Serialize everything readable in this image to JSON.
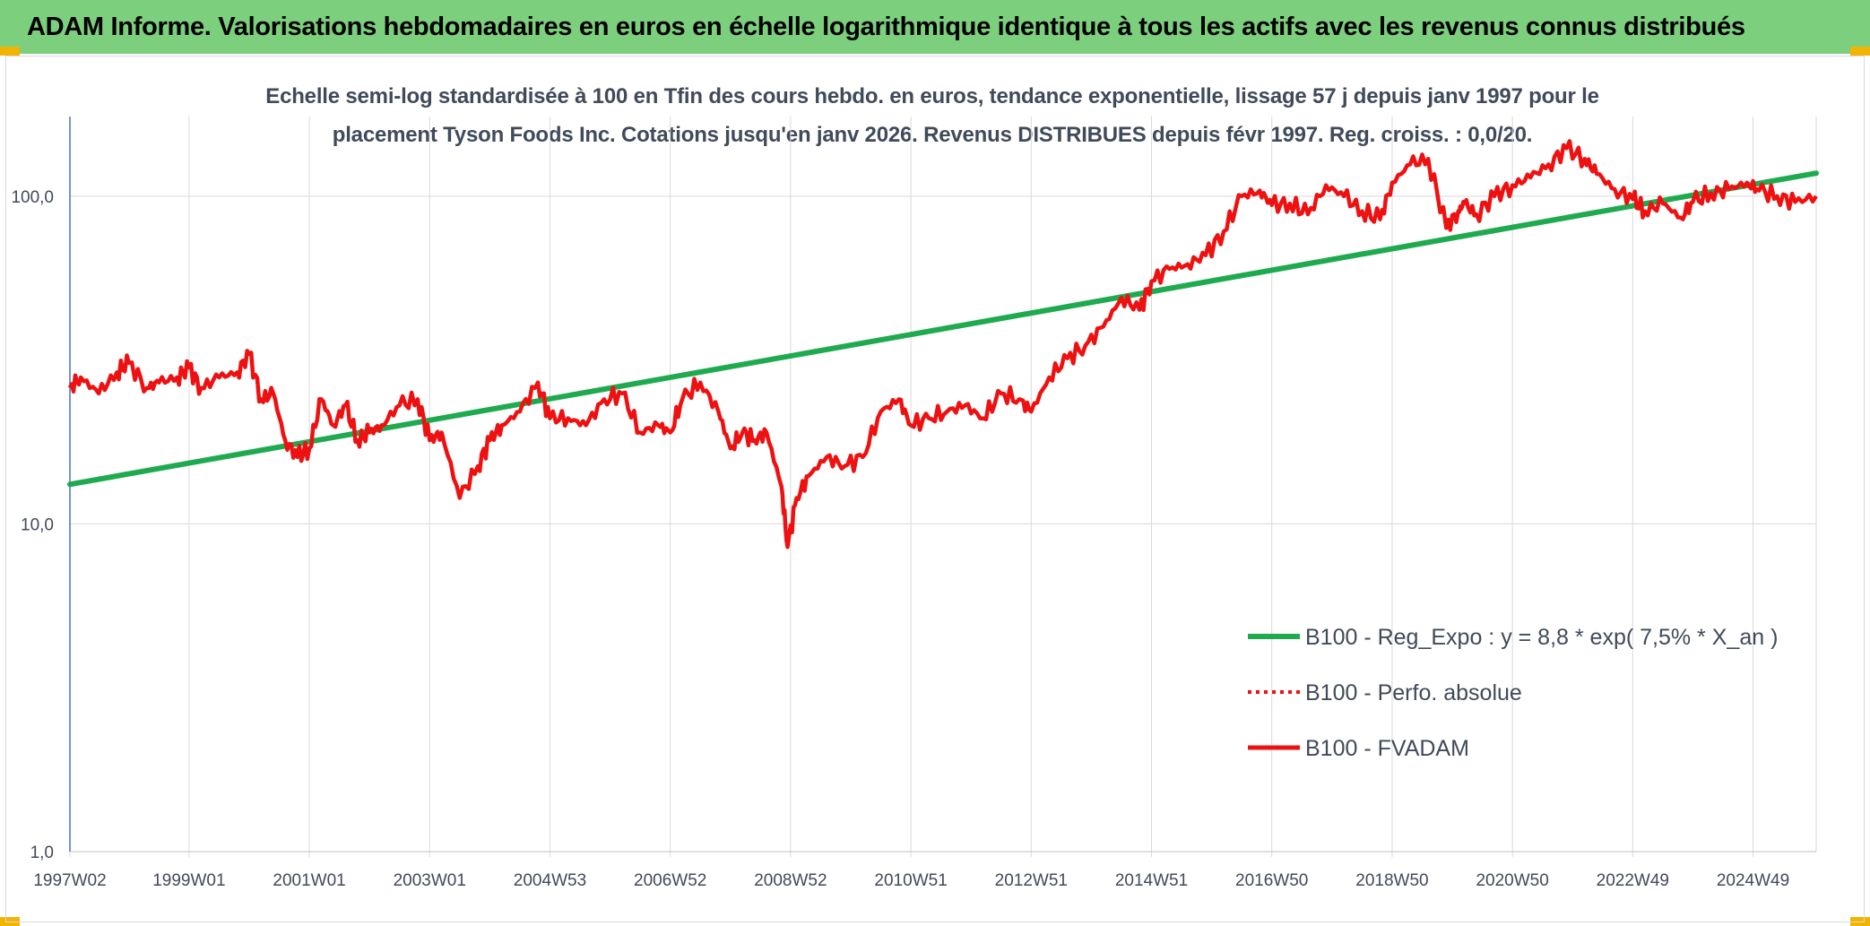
{
  "header": {
    "title": "ADAM Informe. Valorisations hebdomadaires en euros en échelle logarithmique identique à tous les actifs avec les revenus connus distribués"
  },
  "colors": {
    "header_bg": "#7ccf7c",
    "trend": "#1faa50",
    "series": "#ee1111",
    "text": "#404a5a",
    "grid": "#d9d9d9"
  },
  "chart_data": {
    "type": "line",
    "subtitle_line1": "Echelle semi-log standardisée à 100 en Tfin des cours hebdo. en euros, tendance exponentielle, lissage 57 j depuis janv 1997 pour le",
    "subtitle_line2": "placement Tyson Foods Inc. Cotations jusqu'en janv 2026. Revenus DISTRIBUES depuis févr 1997. Reg. croiss. : 0,0/20.",
    "y_scale": "log",
    "ylim": [
      1,
      175
    ],
    "y_ticks": [
      {
        "value": 1,
        "label": "1,0"
      },
      {
        "value": 10,
        "label": "10,0"
      },
      {
        "value": 100,
        "label": "100,0"
      }
    ],
    "x_range": [
      1997.02,
      2026.05
    ],
    "x_ticks": [
      {
        "t": 1997.02,
        "label": "1997W02"
      },
      {
        "t": 1999.0,
        "label": "1999W01"
      },
      {
        "t": 2001.0,
        "label": "2001W01"
      },
      {
        "t": 2003.0,
        "label": "2003W01"
      },
      {
        "t": 2005.0,
        "label": "2004W53"
      },
      {
        "t": 2007.0,
        "label": "2006W52"
      },
      {
        "t": 2009.0,
        "label": "2008W52"
      },
      {
        "t": 2011.0,
        "label": "2010W51"
      },
      {
        "t": 2013.0,
        "label": "2012W51"
      },
      {
        "t": 2015.0,
        "label": "2014W51"
      },
      {
        "t": 2017.0,
        "label": "2016W50"
      },
      {
        "t": 2019.0,
        "label": "2018W50"
      },
      {
        "t": 2021.0,
        "label": "2020W50"
      },
      {
        "t": 2023.0,
        "label": "2022W49"
      },
      {
        "t": 2025.0,
        "label": "2024W49"
      }
    ],
    "grid": "vertical and horizontal",
    "legend_position": "bottom-right",
    "series": [
      {
        "name": "B100 - Reg_Expo : y = 8,8 * exp( 7,5% *  X_an )",
        "style": "solid-thick",
        "color": "#1faa50",
        "x": [
          1997.02,
          2026.05
        ],
        "values": [
          13.2,
          117.5
        ]
      },
      {
        "name": "B100 - Perfo. absolue",
        "style": "dotted",
        "color": "#ee1111",
        "x": [],
        "values": []
      },
      {
        "name": "B100 - FVADAM",
        "style": "solid",
        "color": "#ee1111",
        "x": [
          1997.02,
          1997.2,
          1997.5,
          1997.8,
          1998.0,
          1998.3,
          1998.5,
          1998.8,
          1999.0,
          1999.2,
          1999.5,
          1999.8,
          2000.0,
          2000.2,
          2000.4,
          2000.6,
          2000.8,
          2001.0,
          2001.2,
          2001.4,
          2001.6,
          2001.8,
          2002.0,
          2002.2,
          2002.5,
          2002.8,
          2003.0,
          2003.2,
          2003.5,
          2003.8,
          2004.0,
          2004.2,
          2004.5,
          2004.8,
          2005.0,
          2005.3,
          2005.6,
          2005.9,
          2006.2,
          2006.5,
          2006.8,
          2007.0,
          2007.2,
          2007.5,
          2007.8,
          2008.0,
          2008.2,
          2008.4,
          2008.6,
          2008.85,
          2008.95,
          2009.1,
          2009.3,
          2009.6,
          2009.9,
          2010.2,
          2010.5,
          2010.8,
          2011.0,
          2011.3,
          2011.6,
          2011.9,
          2012.2,
          2012.5,
          2012.8,
          2013.0,
          2013.3,
          2013.6,
          2013.9,
          2014.2,
          2014.5,
          2014.8,
          2015.0,
          2015.3,
          2015.6,
          2015.9,
          2016.2,
          2016.5,
          2016.8,
          2017.0,
          2017.3,
          2017.6,
          2017.9,
          2018.2,
          2018.5,
          2018.8,
          2019.0,
          2019.3,
          2019.6,
          2019.9,
          2020.1,
          2020.2,
          2020.4,
          2020.7,
          2021.0,
          2021.3,
          2021.6,
          2021.9,
          2022.2,
          2022.4,
          2022.7,
          2023.0,
          2023.2,
          2023.5,
          2023.8,
          2024.0,
          2024.3,
          2024.6,
          2024.9,
          2025.1,
          2025.4,
          2025.7,
          2026.05
        ],
        "values": [
          26,
          28,
          25,
          29,
          31,
          26,
          27,
          28,
          30,
          26,
          28,
          29,
          33,
          24,
          25,
          18,
          16,
          17,
          24,
          20,
          23,
          18,
          19,
          20,
          23,
          24,
          18,
          19,
          12,
          15,
          18,
          20,
          22,
          27,
          21,
          21,
          20,
          24,
          25,
          19,
          20,
          19,
          24,
          27,
          22,
          17,
          19,
          18,
          19,
          13,
          8.5,
          12,
          14,
          16,
          15,
          16,
          22,
          24,
          20,
          21,
          22,
          23,
          21,
          25,
          24,
          22,
          28,
          32,
          35,
          40,
          49,
          45,
          55,
          60,
          62,
          66,
          78,
          100,
          104,
          94,
          95,
          88,
          108,
          100,
          90,
          85,
          110,
          125,
          130,
          80,
          90,
          95,
          88,
          100,
          108,
          114,
          125,
          140,
          130,
          117,
          105,
          98,
          90,
          95,
          86,
          96,
          102,
          105,
          110,
          104,
          100,
          96,
          100
        ]
      }
    ]
  }
}
